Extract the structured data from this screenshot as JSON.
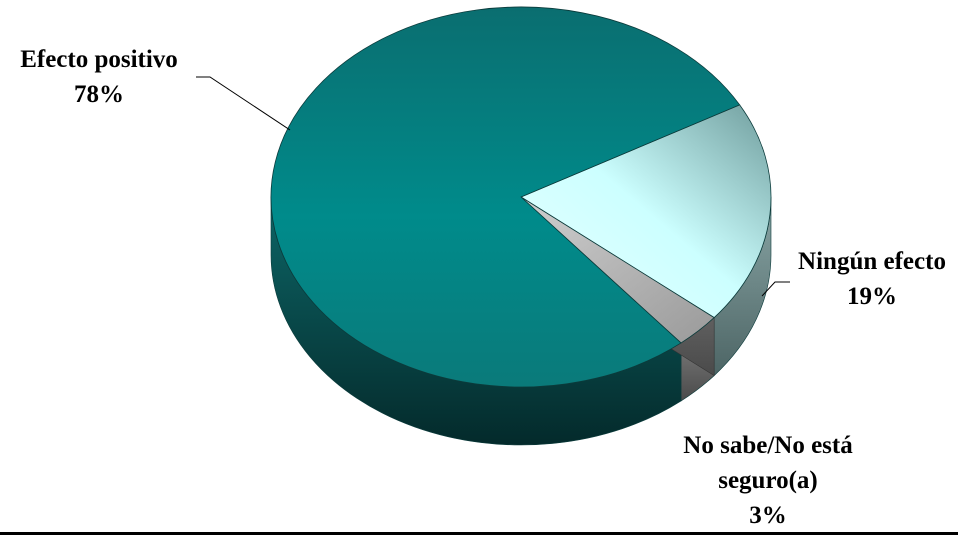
{
  "chart_data": {
    "type": "pie",
    "title": "",
    "style": "3d-exploded",
    "slices": [
      {
        "label": "Efecto positivo",
        "value": 78,
        "value_label": "78%",
        "color": "#008b8b"
      },
      {
        "label": "Ningún efecto",
        "value": 19,
        "value_label": "19%",
        "color": "#ccffff"
      },
      {
        "label": "No sabe/No está seguro(a)",
        "label_lines": [
          "No sabe/No está",
          "seguro(a)"
        ],
        "value": 3,
        "value_label": "3%",
        "color": "#b3b3b3"
      }
    ],
    "legend": "none"
  }
}
